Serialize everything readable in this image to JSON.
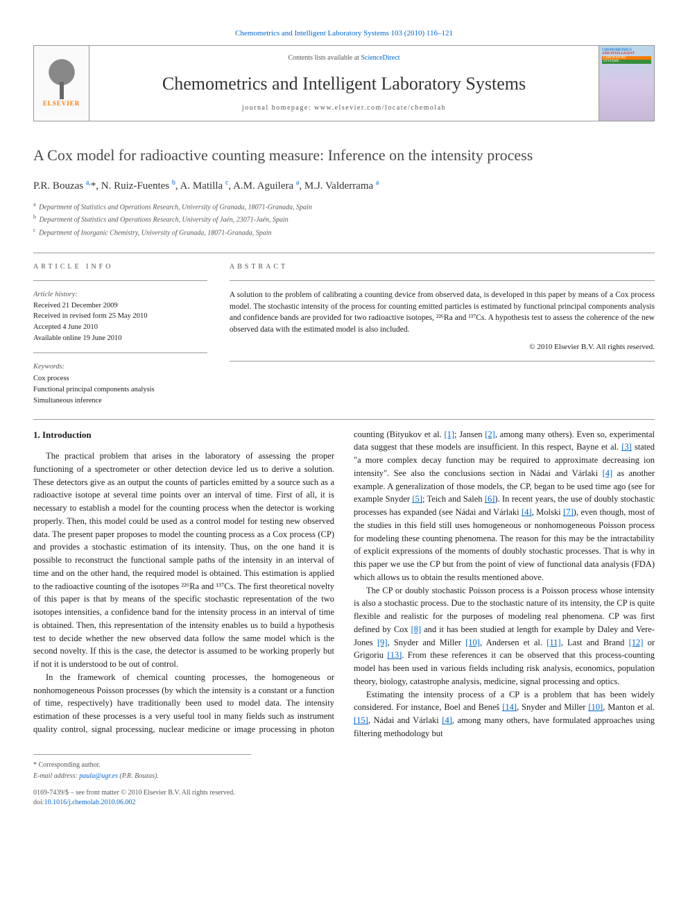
{
  "journal_ref": "Chemometrics and Intelligent Laboratory Systems 103 (2010) 116–121",
  "header": {
    "contents_prefix": "Contents lists available at ",
    "contents_link": "ScienceDirect",
    "journal_title": "Chemometrics and Intelligent Laboratory Systems",
    "homepage": "journal homepage: www.elsevier.com/locate/chemolab",
    "publisher": "ELSEVIER",
    "cover_lines": [
      "CHEMOMETRICS",
      "AND INTELLIGENT",
      "LABORATORY",
      "SYSTEMS"
    ]
  },
  "article": {
    "title": "A Cox model for radioactive counting measure: Inference on the intensity process",
    "authors_html": "P.R. Bouzas <sup class='author-link'>a,</sup>*, N. Ruiz-Fuentes <sup class='author-link'>b</sup>, A. Matilla <sup class='author-link'>c</sup>, A.M. Aguilera <sup class='author-link'>a</sup>, M.J. Valderrama <sup class='author-link'>a</sup>",
    "affiliations": [
      {
        "sup": "a",
        "text": "Department of Statistics and Operations Research, University of Granada, 18071-Granada, Spain"
      },
      {
        "sup": "b",
        "text": "Department of Statistics and Operations Research, University of Jaén, 23071-Jaén, Spain"
      },
      {
        "sup": "c",
        "text": "Department of Inorganic Chemistry, University of Granada, 18071-Granada, Spain"
      }
    ]
  },
  "info": {
    "heading": "ARTICLE INFO",
    "history_label": "Article history:",
    "history": [
      "Received 21 December 2009",
      "Received in revised form 25 May 2010",
      "Accepted 4 June 2010",
      "Available online 19 June 2010"
    ],
    "keywords_label": "Keywords:",
    "keywords": [
      "Cox process",
      "Functional principal components analysis",
      "Simultaneous inference"
    ]
  },
  "abstract": {
    "heading": "ABSTRACT",
    "text": "A solution to the problem of calibrating a counting device from observed data, is developed in this paper by means of a Cox process model. The stochastic intensity of the process for counting emitted particles is estimated by functional principal components analysis and confidence bands are provided for two radioactive isotopes, ²²⁶Ra and ¹³⁷Cs. A hypothesis test to assess the coherence of the new observed data with the estimated model is also included.",
    "copyright": "© 2010 Elsevier B.V. All rights reserved."
  },
  "body": {
    "section_title": "1. Introduction",
    "para1": "The practical problem that arises in the laboratory of assessing the proper functioning of a spectrometer or other detection device led us to derive a solution. These detectors give as an output the counts of particles emitted by a source such as a radioactive isotope at several time points over an interval of time. First of all, it is necessary to establish a model for the counting process when the detector is working properly. Then, this model could be used as a control model for testing new observed data. The present paper proposes to model the counting process as a Cox process (CP) and provides a stochastic estimation of its intensity. Thus, on the one hand it is possible to reconstruct the functional sample paths of the intensity in an interval of time and on the other hand, the required model is obtained. This estimation is applied to the radioactive counting of the isotopes ²²⁶Ra and ¹³⁷Cs. The first theoretical novelty of this paper is that by means of the specific stochastic representation of the two isotopes intensities, a confidence band for the intensity process in an interval of time is obtained. Then, this representation of the intensity enables us to build a hypothesis test to decide whether the new observed data follow the same model which is the second novelty. If this is the case, the detector is assumed to be working properly but if not it is understood to be out of control.",
    "para2_pre": "In the framework of chemical counting processes, the homogeneous or nonhomogeneous Poisson processes (by which the intensity is a constant or a function of time, respectively) have traditionally been used to model data. The intensity estimation of these processes is a very useful tool in many fields such as instrument quality control, signal processing, nuclear medicine or image processing in photon counting (Bityukov et al. ",
    "ref1": "[1]",
    "para2_mid1": "; Jansen ",
    "ref2": "[2]",
    "para2_mid2": ", among many others). Even so, experimental data suggest that these models are insufficient. In this respect, Bayne et al. ",
    "ref3": "[3]",
    "para2_mid3": " stated \"a more complex decay function may be required to approximate decreasing ion intensity\". See also the conclusions section in Nádai and Várlaki ",
    "ref4": "[4]",
    "para2_mid4": " as another example. A generalization of those models, the CP, began to be used time ago (see for example Snyder ",
    "ref5": "[5]",
    "para2_mid5": "; Teich and Saleh ",
    "ref6": "[6]",
    "para2_mid6": "). In recent years, the use of doubly stochastic processes has expanded (see Nádai and Várlaki ",
    "ref4b": "[4]",
    "para2_mid7": ", Molski ",
    "ref7": "[7]",
    "para2_mid8": "), even though, most of the studies in this field still uses homogeneous or nonhomogeneous Poisson process for modeling these counting phenomena. The reason for this may be the intractability of explicit expressions of the moments of doubly stochastic processes. That is why in this paper we use the CP but from the point of view of functional data analysis (FDA) which allows us to obtain the results mentioned above.",
    "para3_pre": "The CP or doubly stochastic Poisson process is a Poisson process whose intensity is also a stochastic process. Due to the stochastic nature of its intensity, the CP is quite flexible and realistic for the purposes of modeling real phenomena. CP was first defined by Cox ",
    "ref8": "[8]",
    "para3_mid1": " and it has been studied at length for example by Daley and Vere-Jones ",
    "ref9": "[9]",
    "para3_mid2": ", Snyder and Miller ",
    "ref10": "[10]",
    "para3_mid3": ", Andersen et al. ",
    "ref11": "[11]",
    "para3_mid4": ", Last and Brand ",
    "ref12": "[12]",
    "para3_mid5": " or Grigoriu ",
    "ref13": "[13]",
    "para3_mid6": ". From these references it can be observed that this process-counting model has been used in various fields including risk analysis, economics, population theory, biology, catastrophe analysis, medicine, signal processing and optics.",
    "para4_pre": "Estimating the intensity process of a CP is a problem that has been widely considered. For instance, Boel and Beneš ",
    "ref14": "[14]",
    "para4_mid1": ", Snyder and Miller ",
    "ref10b": "[10]",
    "para4_mid2": ", Manton et al. ",
    "ref15": "[15]",
    "para4_mid3": ", Nádai and Várlaki ",
    "ref4c": "[4]",
    "para4_end": ", among many others, have formulated approaches using filtering methodology but"
  },
  "footer": {
    "corr": "* Corresponding author.",
    "email_label": "E-mail address:",
    "email": "paula@ugr.es",
    "email_suffix": "(P.R. Bouzas).",
    "copyright_line": "0169-7439/$ – see front matter © 2010 Elsevier B.V. All rights reserved.",
    "doi_prefix": "doi:",
    "doi": "10.1016/j.chemolab.2010.06.002"
  },
  "colors": {
    "link": "#0066cc",
    "text": "#1a1a1a",
    "muted": "#555555",
    "border": "#999999",
    "elsevier_orange": "#f57c00"
  }
}
